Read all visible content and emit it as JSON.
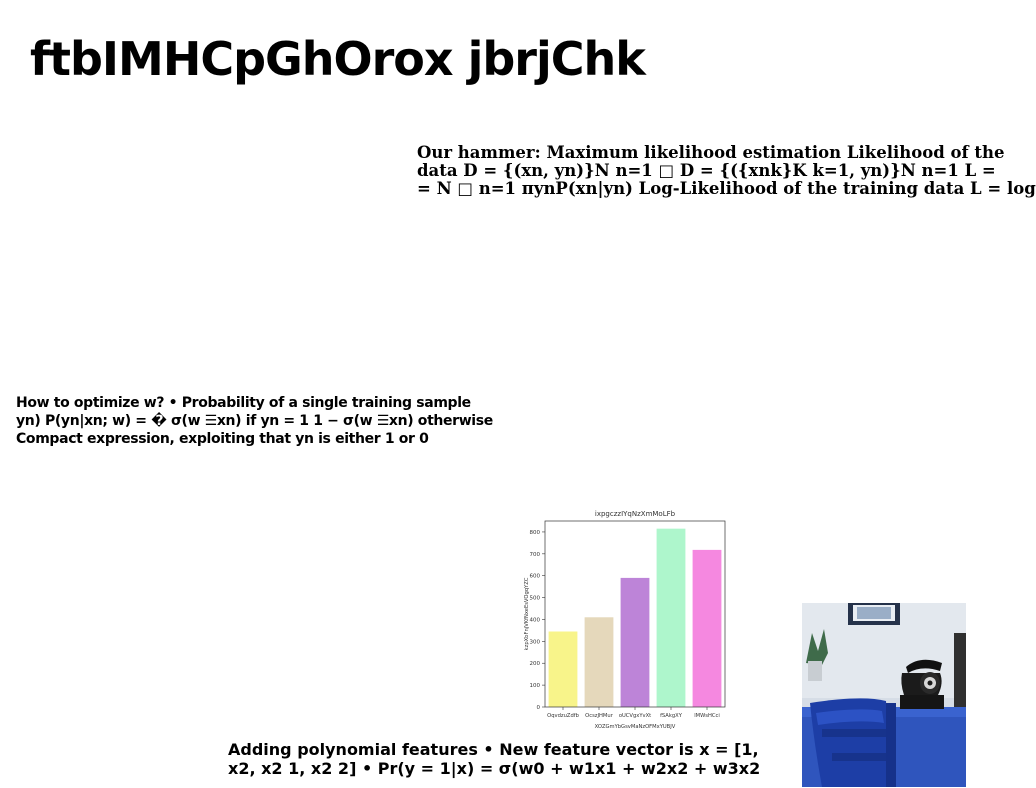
{
  "title": "ftbIMHCpGhOrox jbrjChk",
  "mle_text": {
    "lines": [
      "Our hammer: Maximum likelihood estimation Likelihood of the",
      "data D = {(xn, yn)}N n=1 □ D = {({xnk}K k=1, yn)}N n=1 L =",
      "= N □ n=1 πynP(xn|yn) Log-Likelihood of the training data L = log"
    ]
  },
  "optimize_text": {
    "lines": [
      "How to optimize w? • Probability of a single training sample",
      "yn) P(yn|xn; w) = � σ(w ☰xn) if yn = 1 1 − σ(w ☰xn) otherwise",
      "Compact expression, exploiting that yn is either 1 or 0"
    ]
  },
  "poly_text": {
    "lines": [
      "Adding polynomial features • New feature vector is x = [1,",
      "x2, x2 1, x2 2] • Pr(y = 1|x) = σ(w0 + w1x1 + w2x2 + w3x2"
    ]
  },
  "chart_data": {
    "type": "bar",
    "title": "ixpgczzIYqNzXmMoLFb",
    "xlabel": "XOZGmYbGsvMaNzOFMxYUBJV",
    "ylabel": "kzpXbFnjVKfNxeEsVOgqYZC",
    "categories": [
      "OqvdzuZdfb",
      "OcszJHMur",
      "oUCVgxYvXt",
      "fSAkgXY",
      "lMWsHCci"
    ],
    "values": [
      345,
      410,
      590,
      815,
      718
    ],
    "colors": [
      "#f8f48a",
      "#e5d8bb",
      "#bd84d8",
      "#aef6cc",
      "#f588e0"
    ],
    "ylim": [
      0,
      850
    ],
    "yticks": [
      0,
      100,
      200,
      300,
      400,
      500,
      600,
      700,
      800
    ],
    "grid": false
  },
  "photo": {
    "description_icon": "desk-telephone-photo",
    "colors": {
      "wall": "#d9e0e8",
      "chair": "#1e3fa3",
      "table": "#2a52be",
      "phone": "#222222"
    }
  }
}
